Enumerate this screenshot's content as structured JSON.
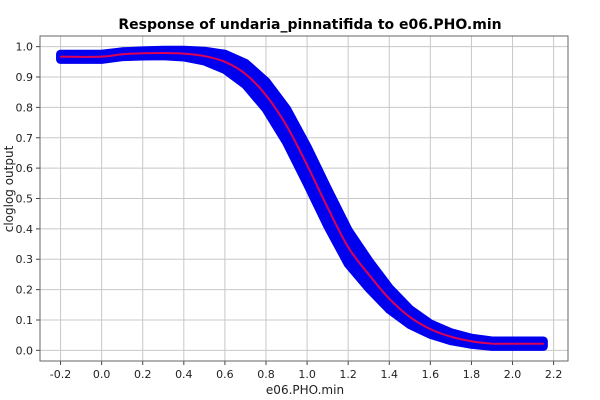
{
  "chart_data": {
    "type": "line",
    "title": "Response of undaria_pinnatifida to e06.PHO.min",
    "xlabel": "e06.PHO.min",
    "ylabel": "cloglog output",
    "xlim": [
      -0.3,
      2.27
    ],
    "ylim": [
      -0.035,
      1.035
    ],
    "grid": true,
    "x_ticks": [
      "-0.2",
      "0.0",
      "0.2",
      "0.4",
      "0.6",
      "0.8",
      "1.0",
      "1.2",
      "1.4",
      "1.6",
      "1.8",
      "2.0",
      "2.2"
    ],
    "y_ticks": [
      "0.0",
      "0.1",
      "0.2",
      "0.3",
      "0.4",
      "0.5",
      "0.6",
      "0.7",
      "0.8",
      "0.9",
      "1.0"
    ],
    "colors": {
      "mean_line": "#dd0055",
      "band": "#0000ee",
      "grid": "#c8c8c8"
    },
    "series": [
      {
        "x": [
          -0.2,
          0.0,
          0.1,
          0.2,
          0.3,
          0.4,
          0.5,
          0.6,
          0.7,
          0.8,
          0.9,
          1.0,
          1.1,
          1.2,
          1.3,
          1.4,
          1.5,
          1.6,
          1.7,
          1.8,
          1.9,
          1.95,
          2.0,
          2.15
        ],
        "mean": [
          0.967,
          0.967,
          0.975,
          0.978,
          0.979,
          0.977,
          0.969,
          0.95,
          0.91,
          0.84,
          0.74,
          0.61,
          0.47,
          0.34,
          0.25,
          0.17,
          0.11,
          0.07,
          0.045,
          0.03,
          0.022,
          0.022,
          0.022,
          0.022
        ],
        "upper": [
          0.975,
          0.975,
          0.983,
          0.986,
          0.988,
          0.988,
          0.985,
          0.975,
          0.945,
          0.885,
          0.795,
          0.67,
          0.53,
          0.395,
          0.295,
          0.205,
          0.135,
          0.087,
          0.058,
          0.04,
          0.031,
          0.031,
          0.031,
          0.031
        ],
        "lower": [
          0.958,
          0.958,
          0.967,
          0.969,
          0.97,
          0.966,
          0.953,
          0.925,
          0.875,
          0.795,
          0.685,
          0.55,
          0.41,
          0.285,
          0.205,
          0.135,
          0.085,
          0.053,
          0.032,
          0.02,
          0.013,
          0.013,
          0.013,
          0.013
        ]
      }
    ]
  }
}
